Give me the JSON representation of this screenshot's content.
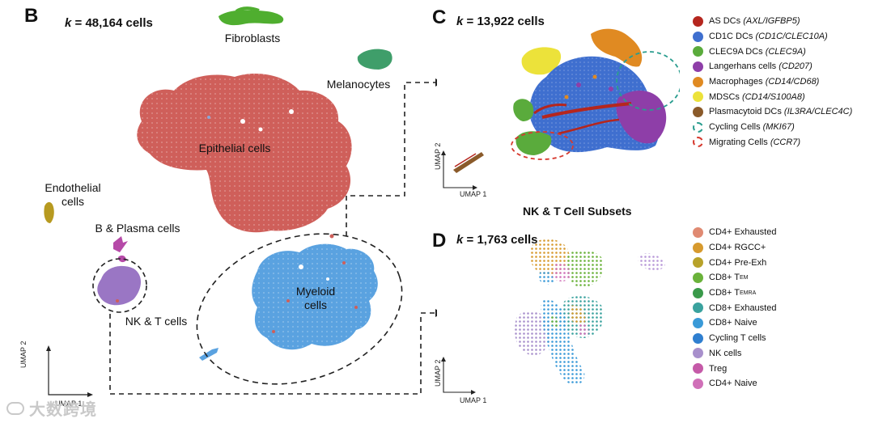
{
  "panel_b": {
    "letter": "B",
    "k_prefix": "k",
    "k_value": "= 48,164 cells",
    "labels": {
      "fibroblasts": "Fibroblasts",
      "melanocytes": "Melanocytes",
      "epithelial": "Epithelial cells",
      "endothelial_1": "Endothelial",
      "endothelial_2": "cells",
      "b_plasma": "B & Plasma cells",
      "nk_t": "NK & T cells",
      "myeloid_1": "Myeloid",
      "myeloid_2": "cells"
    },
    "axis_y": "UMAP 2",
    "axis_x": "UMAP 1",
    "colors": {
      "fibroblasts": "#4fae2f",
      "melanocytes": "#3f9e6a",
      "epithelial": "#cf5f5a",
      "endothelial": "#b79a20",
      "b_plasma": "#b64aa8",
      "nk_t": "#9a76c4",
      "myeloid": "#5aa2e0"
    }
  },
  "panel_c": {
    "letter": "C",
    "k_prefix": "k",
    "k_value": "= 13,922 cells",
    "axis_y": "UMAP 2",
    "axis_x": "UMAP 1",
    "legend": [
      {
        "name": "AS DCs",
        "genes": "(AXL/IGFBP5)",
        "color": "#b5261e",
        "style": "dot"
      },
      {
        "name": "CD1C DCs",
        "genes": "(CD1C/CLEC10A)",
        "color": "#3f6fcf",
        "style": "dot"
      },
      {
        "name": "CLEC9A DCs",
        "genes": "(CLEC9A)",
        "color": "#5aab3c",
        "style": "dot"
      },
      {
        "name": "Langerhans cells",
        "genes": "(CD207)",
        "color": "#8e3ea8",
        "style": "dot"
      },
      {
        "name": "Macrophages",
        "genes": "(CD14/CD68)",
        "color": "#e08a22",
        "style": "dot"
      },
      {
        "name": "MDSCs",
        "genes": "(CD14/S100A8)",
        "color": "#ece23a",
        "style": "dot"
      },
      {
        "name": "Plasmacytoid DCs",
        "genes": "(IL3RA/CLEC4C)",
        "color": "#8a5a2a",
        "style": "dot"
      },
      {
        "name": "Cycling Cells",
        "genes": "(MKI67)",
        "color": "#2a9d8f",
        "style": "ring"
      },
      {
        "name": "Migrating Cells",
        "genes": "(CCR7)",
        "color": "#d63a2f",
        "style": "ring"
      }
    ]
  },
  "panel_d": {
    "letter": "D",
    "title": "NK & T Cell Subsets",
    "k_prefix": "k",
    "k_value": "= 1,763 cells",
    "axis_y": "UMAP 2",
    "axis_x": "UMAP 1",
    "legend": [
      {
        "name": "CD4+ Exhausted",
        "sub": "",
        "color": "#e08a72"
      },
      {
        "name": "CD4+ RGCC+",
        "sub": "",
        "color": "#d79a2e"
      },
      {
        "name": "CD4+ Pre-Exh",
        "sub": "",
        "color": "#b8a22a"
      },
      {
        "name": "CD8+ T",
        "sub": "EM",
        "color": "#6ab23a"
      },
      {
        "name": "CD8+ T",
        "sub": "EMRA",
        "color": "#3a9a4a"
      },
      {
        "name": "CD8+ Exhausted",
        "sub": "",
        "color": "#3aa29e"
      },
      {
        "name": "CD8+ Naive",
        "sub": "",
        "color": "#3a9ad8"
      },
      {
        "name": "Cycling T cells",
        "sub": "",
        "color": "#2f7fd0"
      },
      {
        "name": "NK cells",
        "sub": "",
        "color": "#a890cc"
      },
      {
        "name": "Treg",
        "sub": "",
        "color": "#c55aa8"
      },
      {
        "name": "CD4+ Naive",
        "sub": "",
        "color": "#d070b8"
      }
    ]
  },
  "watermark": "大数跨境"
}
